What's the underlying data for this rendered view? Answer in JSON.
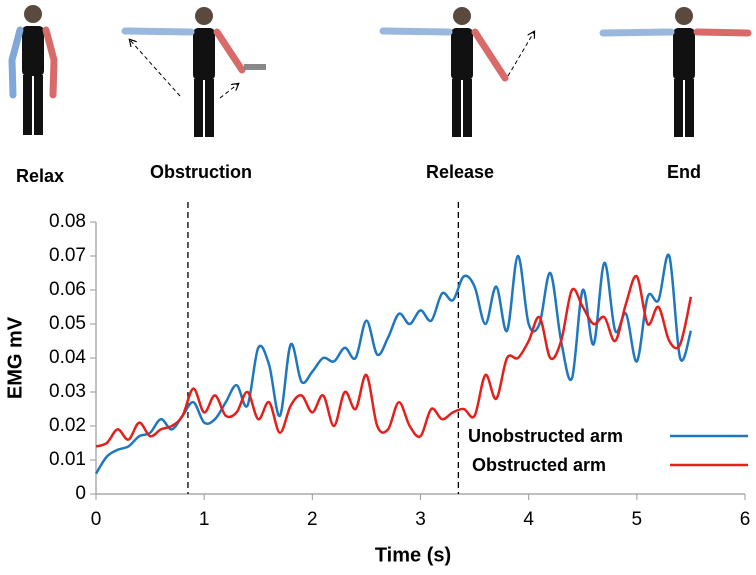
{
  "chart_data": {
    "type": "line",
    "annotations": [
      "Relax",
      "Obstruction",
      "Release",
      "End"
    ],
    "vlines": [
      0.85,
      3.35
    ],
    "x_label": "Time (s)",
    "y_label": "EMG mV",
    "x": [
      0,
      0.1,
      0.2,
      0.3,
      0.4,
      0.5,
      0.6,
      0.7,
      0.8,
      0.9,
      1.0,
      1.1,
      1.2,
      1.3,
      1.4,
      1.5,
      1.6,
      1.7,
      1.8,
      1.9,
      2.0,
      2.1,
      2.2,
      2.3,
      2.4,
      2.5,
      2.6,
      2.7,
      2.8,
      2.9,
      3.0,
      3.1,
      3.2,
      3.3,
      3.4,
      3.5,
      3.6,
      3.7,
      3.8,
      3.9,
      4.0,
      4.1,
      4.2,
      4.3,
      4.4,
      4.5,
      4.6,
      4.7,
      4.8,
      4.9,
      5.0,
      5.1,
      5.2,
      5.3,
      5.4,
      5.5
    ],
    "series": [
      {
        "name": "Unobstructed arm",
        "color": "#1f77c0",
        "values": [
          0.006,
          0.011,
          0.013,
          0.014,
          0.017,
          0.018,
          0.022,
          0.019,
          0.023,
          0.027,
          0.021,
          0.022,
          0.027,
          0.032,
          0.026,
          0.043,
          0.038,
          0.023,
          0.044,
          0.033,
          0.036,
          0.04,
          0.039,
          0.043,
          0.04,
          0.051,
          0.041,
          0.046,
          0.053,
          0.05,
          0.054,
          0.051,
          0.059,
          0.057,
          0.064,
          0.061,
          0.05,
          0.061,
          0.048,
          0.07,
          0.05,
          0.05,
          0.065,
          0.045,
          0.034,
          0.06,
          0.044,
          0.068,
          0.048,
          0.053,
          0.039,
          0.058,
          0.057,
          0.07,
          0.04,
          0.048
        ]
      },
      {
        "name": "Obstructed arm",
        "color": "#e3201b",
        "values": [
          0.014,
          0.015,
          0.019,
          0.016,
          0.021,
          0.017,
          0.019,
          0.02,
          0.023,
          0.031,
          0.024,
          0.029,
          0.023,
          0.024,
          0.03,
          0.022,
          0.027,
          0.018,
          0.026,
          0.029,
          0.024,
          0.029,
          0.02,
          0.03,
          0.025,
          0.035,
          0.02,
          0.019,
          0.027,
          0.02,
          0.017,
          0.025,
          0.022,
          0.024,
          0.025,
          0.023,
          0.035,
          0.028,
          0.04,
          0.04,
          0.045,
          0.052,
          0.04,
          0.045,
          0.06,
          0.055,
          0.05,
          0.052,
          0.045,
          0.056,
          0.064,
          0.05,
          0.055,
          0.045,
          0.044,
          0.058
        ]
      }
    ],
    "xlim": [
      0,
      6
    ],
    "xticks": [
      0,
      1,
      2,
      3,
      4,
      5,
      6
    ],
    "ylim": [
      0,
      0.08
    ],
    "yticks": [
      0,
      0.01,
      0.02,
      0.03,
      0.04,
      0.05,
      0.06,
      0.07,
      0.08
    ],
    "grid": false,
    "legend": "lower right"
  }
}
